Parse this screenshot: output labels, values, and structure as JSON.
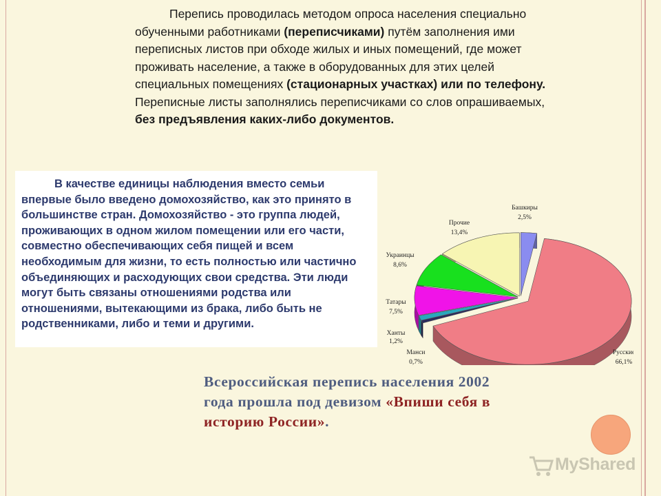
{
  "top_paragraph": {
    "part1": "Перепись проводилась методом опроса населения специально обученными работниками ",
    "bold1": "(переписчиками)",
    "part2": " путём заполнения ими переписных листов при обходе жилых и иных помещений, где может проживать население, а также в оборудованных для этих целей специальных помещениях ",
    "bold2": "(стационарных участках) или по телефону.",
    "part3": " Переписные листы заполнялись переписчиками со слов опрашиваемых, ",
    "bold3": "без предъявления каких-либо документов."
  },
  "box_paragraph": "В качестве единицы наблюдения вместо семьи впервые было введено домохозяйство, как это принято в большинстве стран. Домохозяйство - это группа людей, проживающих в одном жилом помещении или его части, совместно обеспечивающих себя пищей и всем необходимым для жизни, то есть полностью или частично объединяющих и расходующих свои средства. Эти люди могут быть связаны отношениями родства или отношениями, вытекающими из брака, либо быть не родственниками, либо и теми и другими.",
  "motto": {
    "text": "Всероссийская перепись населения 2002 года прошла под девизом ",
    "slogan": "«Впиши себя в историю России»",
    "end": "."
  },
  "logo": {
    "icon": "mcs-cart-icon",
    "text": "MyShared"
  },
  "chart_data": {
    "type": "pie",
    "title": "",
    "slices": [
      {
        "label": "Башкиры",
        "value": 2.5,
        "display": "2,5%",
        "color": "#8a8cf0"
      },
      {
        "label": "Русские",
        "value": 66.1,
        "display": "66,1%",
        "color": "#f07d86"
      },
      {
        "label": "Манси",
        "value": 0.7,
        "display": "0,7%",
        "color": "#2b2b5e"
      },
      {
        "label": "Ханты",
        "value": 1.2,
        "display": "1,2%",
        "color": "#2aa7bd"
      },
      {
        "label": "Татары",
        "value": 7.5,
        "display": "7,5%",
        "color": "#f013e8"
      },
      {
        "label": "Украинцы",
        "value": 8.6,
        "display": "8,6%",
        "color": "#18e01e"
      },
      {
        "label": "Прочие",
        "value": 13.4,
        "display": "13,4%",
        "color": "#f7f5b3"
      }
    ]
  }
}
